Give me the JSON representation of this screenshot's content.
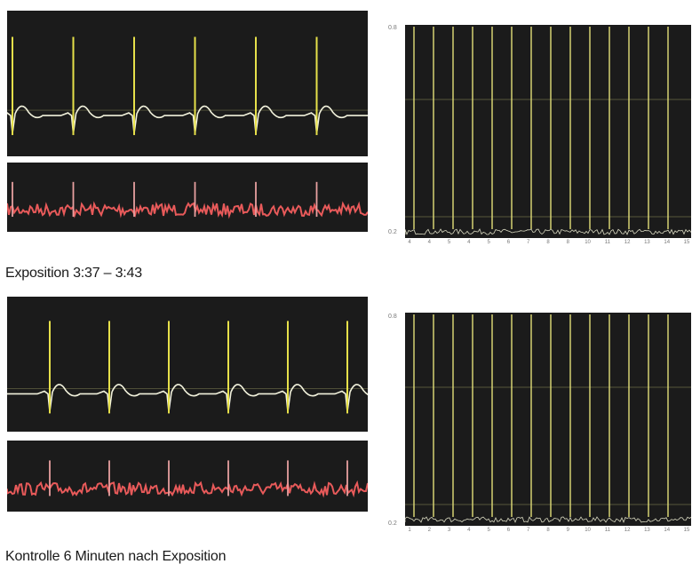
{
  "colors": {
    "panel_bg": "#1b1b1b",
    "ecg_trace": "#f2f2dc",
    "ecg_spike": "#e6e04a",
    "noise_trace": "#e85a5a",
    "noise_spike": "#e8a0a0",
    "bars": "#e8e47a",
    "grid": "#c8c878"
  },
  "chart_data": [
    {
      "type": "line",
      "caption": "Exposition 3:37 – 3:43",
      "ecg_trace": {
        "beats": 6
      },
      "noise_trace": {
        "beats": 6
      },
      "histogram": {
        "type": "bar",
        "header": "",
        "y_top_label": "0.8",
        "y_bottom_label": "0.2",
        "y_axis_label": "",
        "x_ticks": [
          "4",
          "4",
          "5",
          "4",
          "5",
          "6",
          "7",
          "8",
          "8",
          "10",
          "11",
          "12",
          "13",
          "14",
          "15"
        ],
        "bar_count": 14
      }
    },
    {
      "type": "line",
      "caption": "Kontrolle 6 Minuten nach Exposition",
      "ecg_trace": {
        "beats": 6
      },
      "noise_trace": {
        "beats": 6
      },
      "histogram": {
        "type": "bar",
        "header": "",
        "y_top_label": "0.8",
        "y_bottom_label": "0.2",
        "y_axis_label": "",
        "x_ticks": [
          "1",
          "2",
          "3",
          "4",
          "5",
          "6",
          "7",
          "8",
          "9",
          "10",
          "11",
          "12",
          "13",
          "14",
          "15"
        ],
        "bar_count": 14
      }
    }
  ]
}
